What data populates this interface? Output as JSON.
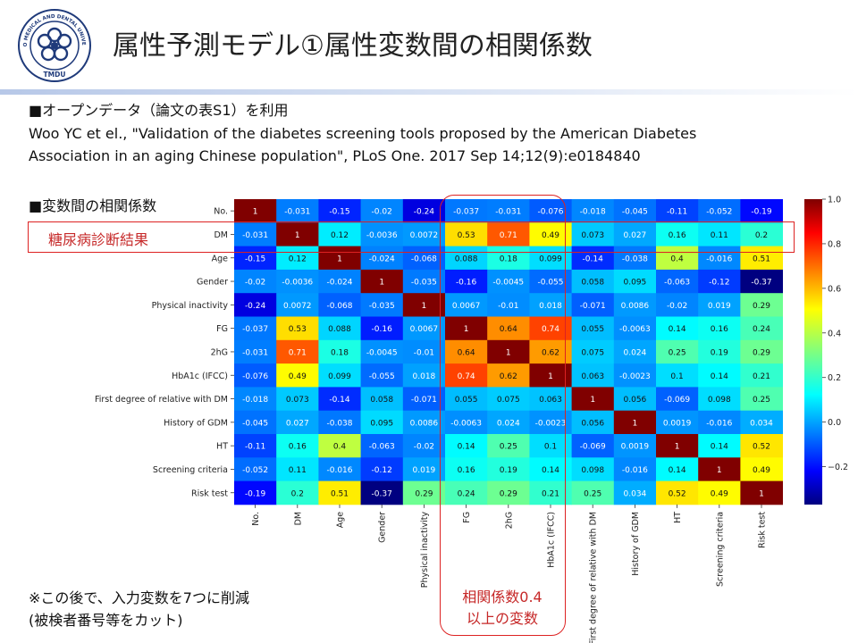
{
  "slide": {
    "title": "属性予測モデル①属性変数間の相関係数",
    "heading_opendata": "■オープンデータ（論文の表S1）を利用",
    "citation_line1": "Woo YC et el., \"Validation of the diabetes screening tools proposed by the American Diabetes",
    "citation_line2": "Association in an aging Chinese population\", PLoS One. 2017 Sep 14;12(9):e0184840",
    "heading_corr": "■変数間の相関係数",
    "dm_box_label": "糖尿病診断結果",
    "strong_box_label_1": "相関係数0.4",
    "strong_box_label_2": "以上の変数",
    "note_line1": "※この後で、入力変数を7つに削減",
    "note_line2": "(被検者番号等をカット)",
    "logo_text_top": "TOKYO MEDICAL AND DENTAL UNIVERSITY",
    "logo_text_bottom": "TMDU"
  },
  "colors": {
    "title_rule": "#b7c8e8",
    "highlight_border": "#dd2222",
    "highlight_text": "#c62828",
    "logo_navy": "#1f3a7a"
  },
  "chart_data": {
    "type": "heatmap",
    "colormap": "jet",
    "value_range": [
      -0.37,
      1.0
    ],
    "variables": [
      "No.",
      "DM",
      "Age",
      "Gender",
      "Physical inactivity",
      "FG",
      "2hG",
      "HbA1c (IFCC)",
      "First degree of relative with DM",
      "History of GDM",
      "HT",
      "Screening criteria",
      "Risk test"
    ],
    "matrix": [
      [
        "1",
        "-0.031",
        "-0.15",
        "-0.02",
        "-0.24",
        "-0.037",
        "-0.031",
        "-0.076",
        "-0.018",
        "-0.045",
        "-0.11",
        "-0.052",
        "-0.19"
      ],
      [
        "-0.031",
        "1",
        "0.12",
        "-0.0036",
        "0.0072",
        "0.53",
        "0.71",
        "0.49",
        "0.073",
        "0.027",
        "0.16",
        "0.11",
        "0.2"
      ],
      [
        "-0.15",
        "0.12",
        "1",
        "-0.024",
        "-0.068",
        "0.088",
        "0.18",
        "0.099",
        "-0.14",
        "-0.038",
        "0.4",
        "-0.016",
        "0.51"
      ],
      [
        "-0.02",
        "-0.0036",
        "-0.024",
        "1",
        "-0.035",
        "-0.16",
        "-0.0045",
        "-0.055",
        "0.058",
        "0.095",
        "-0.063",
        "-0.12",
        "-0.37"
      ],
      [
        "-0.24",
        "0.0072",
        "-0.068",
        "-0.035",
        "1",
        "0.0067",
        "-0.01",
        "0.018",
        "-0.071",
        "0.0086",
        "-0.02",
        "0.019",
        "0.29"
      ],
      [
        "-0.037",
        "0.53",
        "0.088",
        "-0.16",
        "0.0067",
        "1",
        "0.64",
        "0.74",
        "0.055",
        "-0.0063",
        "0.14",
        "0.16",
        "0.24"
      ],
      [
        "-0.031",
        "0.71",
        "0.18",
        "-0.0045",
        "-0.01",
        "0.64",
        "1",
        "0.62",
        "0.075",
        "0.024",
        "0.25",
        "0.19",
        "0.29"
      ],
      [
        "-0.076",
        "0.49",
        "0.099",
        "-0.055",
        "0.018",
        "0.74",
        "0.62",
        "1",
        "0.063",
        "-0.0023",
        "0.1",
        "0.14",
        "0.21"
      ],
      [
        "-0.018",
        "0.073",
        "-0.14",
        "0.058",
        "-0.071",
        "0.055",
        "0.075",
        "0.063",
        "1",
        "0.056",
        "-0.069",
        "0.098",
        "0.25"
      ],
      [
        "-0.045",
        "0.027",
        "-0.038",
        "0.095",
        "0.0086",
        "-0.0063",
        "0.024",
        "-0.0023",
        "0.056",
        "1",
        "0.0019",
        "-0.016",
        "0.034"
      ],
      [
        "-0.11",
        "0.16",
        "0.4",
        "-0.063",
        "-0.02",
        "0.14",
        "0.25",
        "0.1",
        "-0.069",
        "0.0019",
        "1",
        "0.14",
        "0.52"
      ],
      [
        "-0.052",
        "0.11",
        "-0.016",
        "-0.12",
        "0.019",
        "0.16",
        "0.19",
        "0.14",
        "0.098",
        "-0.016",
        "0.14",
        "1",
        "0.49"
      ],
      [
        "-0.19",
        "0.2",
        "0.51",
        "-0.37",
        "0.29",
        "0.24",
        "0.29",
        "0.21",
        "0.25",
        "0.034",
        "0.52",
        "0.49",
        "1"
      ]
    ],
    "colorbar_ticks": [
      "1.0",
      "0.8",
      "0.6",
      "0.4",
      "0.2",
      "0.0",
      "−0.2"
    ],
    "colorbar_tick_values": [
      1.0,
      0.8,
      0.6,
      0.4,
      0.2,
      0.0,
      -0.2
    ]
  }
}
